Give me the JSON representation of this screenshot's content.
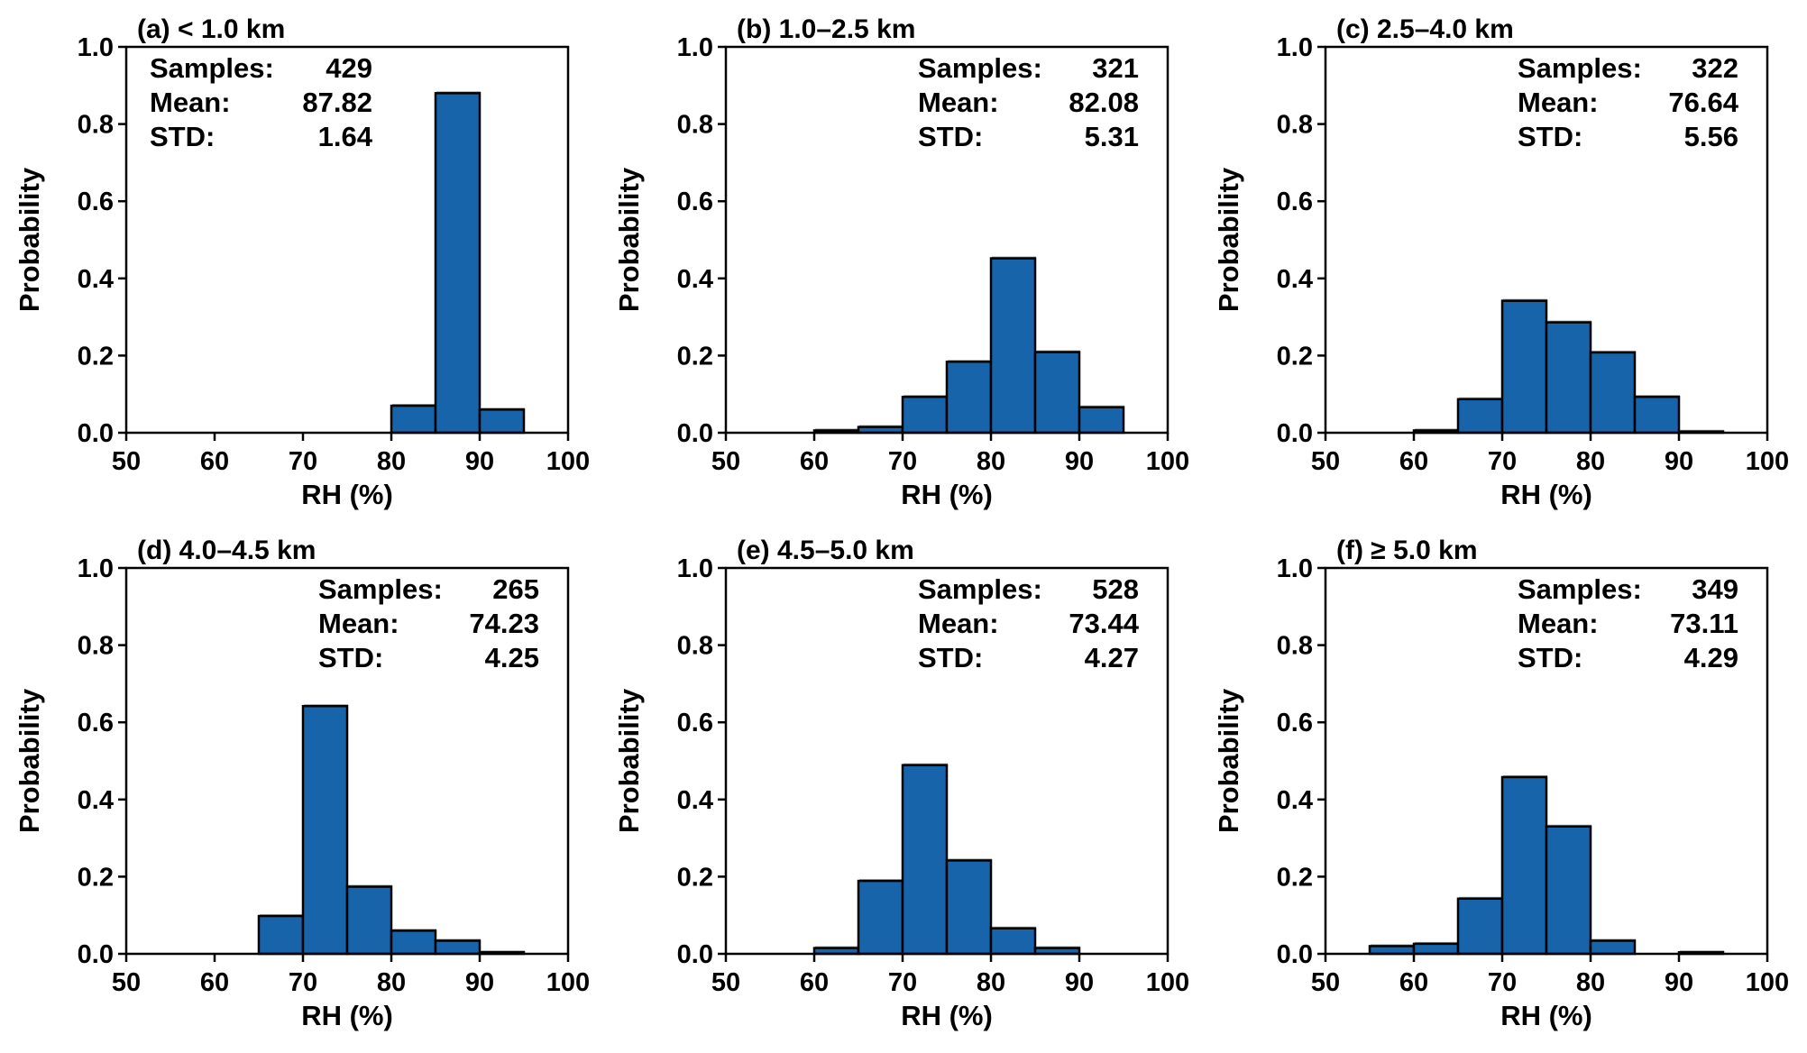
{
  "chart_data": [
    {
      "type": "bar",
      "title": "(a) < 1.0 km",
      "xlabel": "RH (%)",
      "ylabel": "Probability",
      "xlim": [
        50,
        100
      ],
      "ylim": [
        0,
        1.0
      ],
      "xticks": [
        "50",
        "60",
        "70",
        "80",
        "90",
        "100"
      ],
      "yticks": [
        "0.0",
        "0.2",
        "0.4",
        "0.6",
        "0.8",
        "1.0"
      ],
      "bin_width": 5,
      "bins": [
        {
          "x0": 80,
          "value": 0.07
        },
        {
          "x0": 85,
          "value": 0.88
        },
        {
          "x0": 90,
          "value": 0.06
        }
      ],
      "stats_position": "top-left",
      "stats": [
        {
          "label": "Samples:",
          "value": "429"
        },
        {
          "label": "Mean:",
          "value": "87.82"
        },
        {
          "label": "STD:",
          "value": "1.64"
        }
      ],
      "bar_color": "#1764ab"
    },
    {
      "type": "bar",
      "title": "(b) 1.0–2.5 km",
      "xlabel": "RH (%)",
      "ylabel": "Probability",
      "xlim": [
        50,
        100
      ],
      "ylim": [
        0,
        1.0
      ],
      "xticks": [
        "50",
        "60",
        "70",
        "80",
        "90",
        "100"
      ],
      "yticks": [
        "0.0",
        "0.2",
        "0.4",
        "0.6",
        "0.8",
        "1.0"
      ],
      "bin_width": 5,
      "bins": [
        {
          "x0": 60,
          "value": 0.006
        },
        {
          "x0": 65,
          "value": 0.015
        },
        {
          "x0": 70,
          "value": 0.093
        },
        {
          "x0": 75,
          "value": 0.184
        },
        {
          "x0": 80,
          "value": 0.452
        },
        {
          "x0": 85,
          "value": 0.209
        },
        {
          "x0": 90,
          "value": 0.066
        }
      ],
      "stats_position": "top-right",
      "stats": [
        {
          "label": "Samples:",
          "value": "321"
        },
        {
          "label": "Mean:",
          "value": "82.08"
        },
        {
          "label": "STD:",
          "value": "5.31"
        }
      ],
      "bar_color": "#1764ab"
    },
    {
      "type": "bar",
      "title": "(c) 2.5–4.0 km",
      "xlabel": "RH (%)",
      "ylabel": "Probability",
      "xlim": [
        50,
        100
      ],
      "ylim": [
        0,
        1.0
      ],
      "xticks": [
        "50",
        "60",
        "70",
        "80",
        "90",
        "100"
      ],
      "yticks": [
        "0.0",
        "0.2",
        "0.4",
        "0.6",
        "0.8",
        "1.0"
      ],
      "bin_width": 5,
      "bins": [
        {
          "x0": 60,
          "value": 0.006
        },
        {
          "x0": 65,
          "value": 0.087
        },
        {
          "x0": 70,
          "value": 0.342
        },
        {
          "x0": 75,
          "value": 0.286
        },
        {
          "x0": 80,
          "value": 0.208
        },
        {
          "x0": 85,
          "value": 0.093
        },
        {
          "x0": 90,
          "value": 0.003
        }
      ],
      "stats_position": "top-right",
      "stats": [
        {
          "label": "Samples:",
          "value": "322"
        },
        {
          "label": "Mean:",
          "value": "76.64"
        },
        {
          "label": "STD:",
          "value": "5.56"
        }
      ],
      "bar_color": "#1764ab"
    },
    {
      "type": "bar",
      "title": "(d) 4.0–4.5 km",
      "xlabel": "RH (%)",
      "ylabel": "Probability",
      "xlim": [
        50,
        100
      ],
      "ylim": [
        0,
        1.0
      ],
      "xticks": [
        "50",
        "60",
        "70",
        "80",
        "90",
        "100"
      ],
      "yticks": [
        "0.0",
        "0.2",
        "0.4",
        "0.6",
        "0.8",
        "1.0"
      ],
      "bin_width": 5,
      "bins": [
        {
          "x0": 65,
          "value": 0.098
        },
        {
          "x0": 70,
          "value": 0.642
        },
        {
          "x0": 75,
          "value": 0.174
        },
        {
          "x0": 80,
          "value": 0.06
        },
        {
          "x0": 85,
          "value": 0.034
        },
        {
          "x0": 90,
          "value": 0.004
        }
      ],
      "stats_position": "top-right",
      "stats": [
        {
          "label": "Samples:",
          "value": "265"
        },
        {
          "label": "Mean:",
          "value": "74.23"
        },
        {
          "label": "STD:",
          "value": "4.25"
        }
      ],
      "bar_color": "#1764ab"
    },
    {
      "type": "bar",
      "title": "(e) 4.5–5.0 km",
      "xlabel": "RH (%)",
      "ylabel": "Probability",
      "xlim": [
        50,
        100
      ],
      "ylim": [
        0,
        1.0
      ],
      "xticks": [
        "50",
        "60",
        "70",
        "80",
        "90",
        "100"
      ],
      "yticks": [
        "0.0",
        "0.2",
        "0.4",
        "0.6",
        "0.8",
        "1.0"
      ],
      "bin_width": 5,
      "bins": [
        {
          "x0": 60,
          "value": 0.015
        },
        {
          "x0": 65,
          "value": 0.189
        },
        {
          "x0": 70,
          "value": 0.489
        },
        {
          "x0": 75,
          "value": 0.242
        },
        {
          "x0": 80,
          "value": 0.066
        },
        {
          "x0": 85,
          "value": 0.015
        }
      ],
      "stats_position": "top-right",
      "stats": [
        {
          "label": "Samples:",
          "value": "528"
        },
        {
          "label": "Mean:",
          "value": "73.44"
        },
        {
          "label": "STD:",
          "value": "4.27"
        }
      ],
      "bar_color": "#1764ab"
    },
    {
      "type": "bar",
      "title": "(f)  ≥  5.0 km",
      "xlabel": "RH (%)",
      "ylabel": "Probability",
      "xlim": [
        50,
        100
      ],
      "ylim": [
        0,
        1.0
      ],
      "xticks": [
        "50",
        "60",
        "70",
        "80",
        "90",
        "100"
      ],
      "yticks": [
        "0.0",
        "0.2",
        "0.4",
        "0.6",
        "0.8",
        "1.0"
      ],
      "bin_width": 5,
      "bins": [
        {
          "x0": 55,
          "value": 0.02
        },
        {
          "x0": 60,
          "value": 0.026
        },
        {
          "x0": 65,
          "value": 0.143
        },
        {
          "x0": 70,
          "value": 0.458
        },
        {
          "x0": 75,
          "value": 0.33
        },
        {
          "x0": 80,
          "value": 0.034
        },
        {
          "x0": 90,
          "value": 0.004
        }
      ],
      "stats_position": "top-right",
      "stats": [
        {
          "label": "Samples:",
          "value": "349"
        },
        {
          "label": "Mean:",
          "value": "73.11"
        },
        {
          "label": "STD:",
          "value": "4.29"
        }
      ],
      "bar_color": "#1764ab"
    }
  ]
}
